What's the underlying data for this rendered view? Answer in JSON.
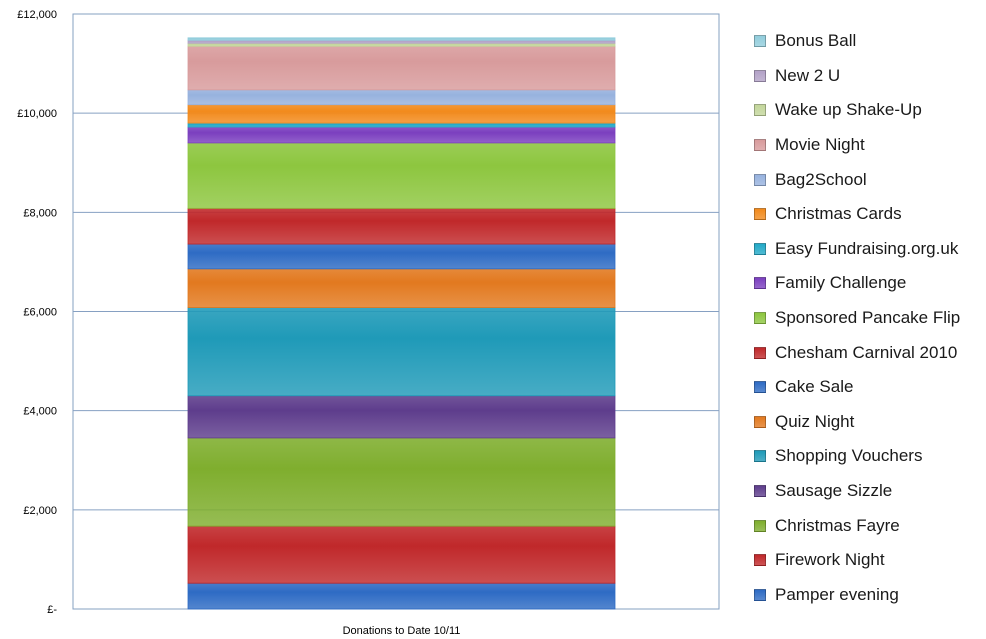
{
  "chart_data": {
    "type": "bar",
    "stacked": true,
    "categories": [
      "Donations to Date 10/11"
    ],
    "y_tick_labels": [
      "£-",
      "£2,000",
      "£4,000",
      "£6,000",
      "£8,000",
      "£10,000",
      "£12,000"
    ],
    "ylim": [
      0,
      12000
    ],
    "grid": true,
    "legend_position": "right",
    "series": [
      {
        "name": "Pamper evening",
        "values": [
          520
        ],
        "color": "#2e6bc4"
      },
      {
        "name": "Firework Night",
        "values": [
          1150
        ],
        "color": "#c0282a"
      },
      {
        "name": "Christmas Fayre",
        "values": [
          1780
        ],
        "color": "#7fae2e"
      },
      {
        "name": "Sausage Sizzle",
        "values": [
          850
        ],
        "color": "#5e3d8c"
      },
      {
        "name": "Shopping Vouchers",
        "values": [
          1780
        ],
        "color": "#1f9ab8"
      },
      {
        "name": "Quiz Night",
        "values": [
          780
        ],
        "color": "#e2791f"
      },
      {
        "name": "Cake Sale",
        "values": [
          500
        ],
        "color": "#2e6bc4"
      },
      {
        "name": "Chesham Carnival 2010",
        "values": [
          720
        ],
        "color": "#c0282a"
      },
      {
        "name": "Sponsored Pancake Flip",
        "values": [
          1320
        ],
        "color": "#8dc63f"
      },
      {
        "name": "Family Challenge",
        "values": [
          320
        ],
        "color": "#7b3fbf"
      },
      {
        "name": "Easy Fundraising.org.uk",
        "values": [
          80
        ],
        "color": "#23a9c7"
      },
      {
        "name": "Christmas Cards",
        "values": [
          370
        ],
        "color": "#f28a1c"
      },
      {
        "name": "Bag2School",
        "values": [
          300
        ],
        "color": "#97b2de"
      },
      {
        "name": "Movie Night",
        "values": [
          880
        ],
        "color": "#d89b9c"
      },
      {
        "name": "Wake up Shake-Up",
        "values": [
          60
        ],
        "color": "#c3d69b"
      },
      {
        "name": "New 2 U",
        "values": [
          60
        ],
        "color": "#b3a2c7"
      },
      {
        "name": "Bonus Ball",
        "values": [
          50
        ],
        "color": "#92cddc"
      }
    ]
  }
}
